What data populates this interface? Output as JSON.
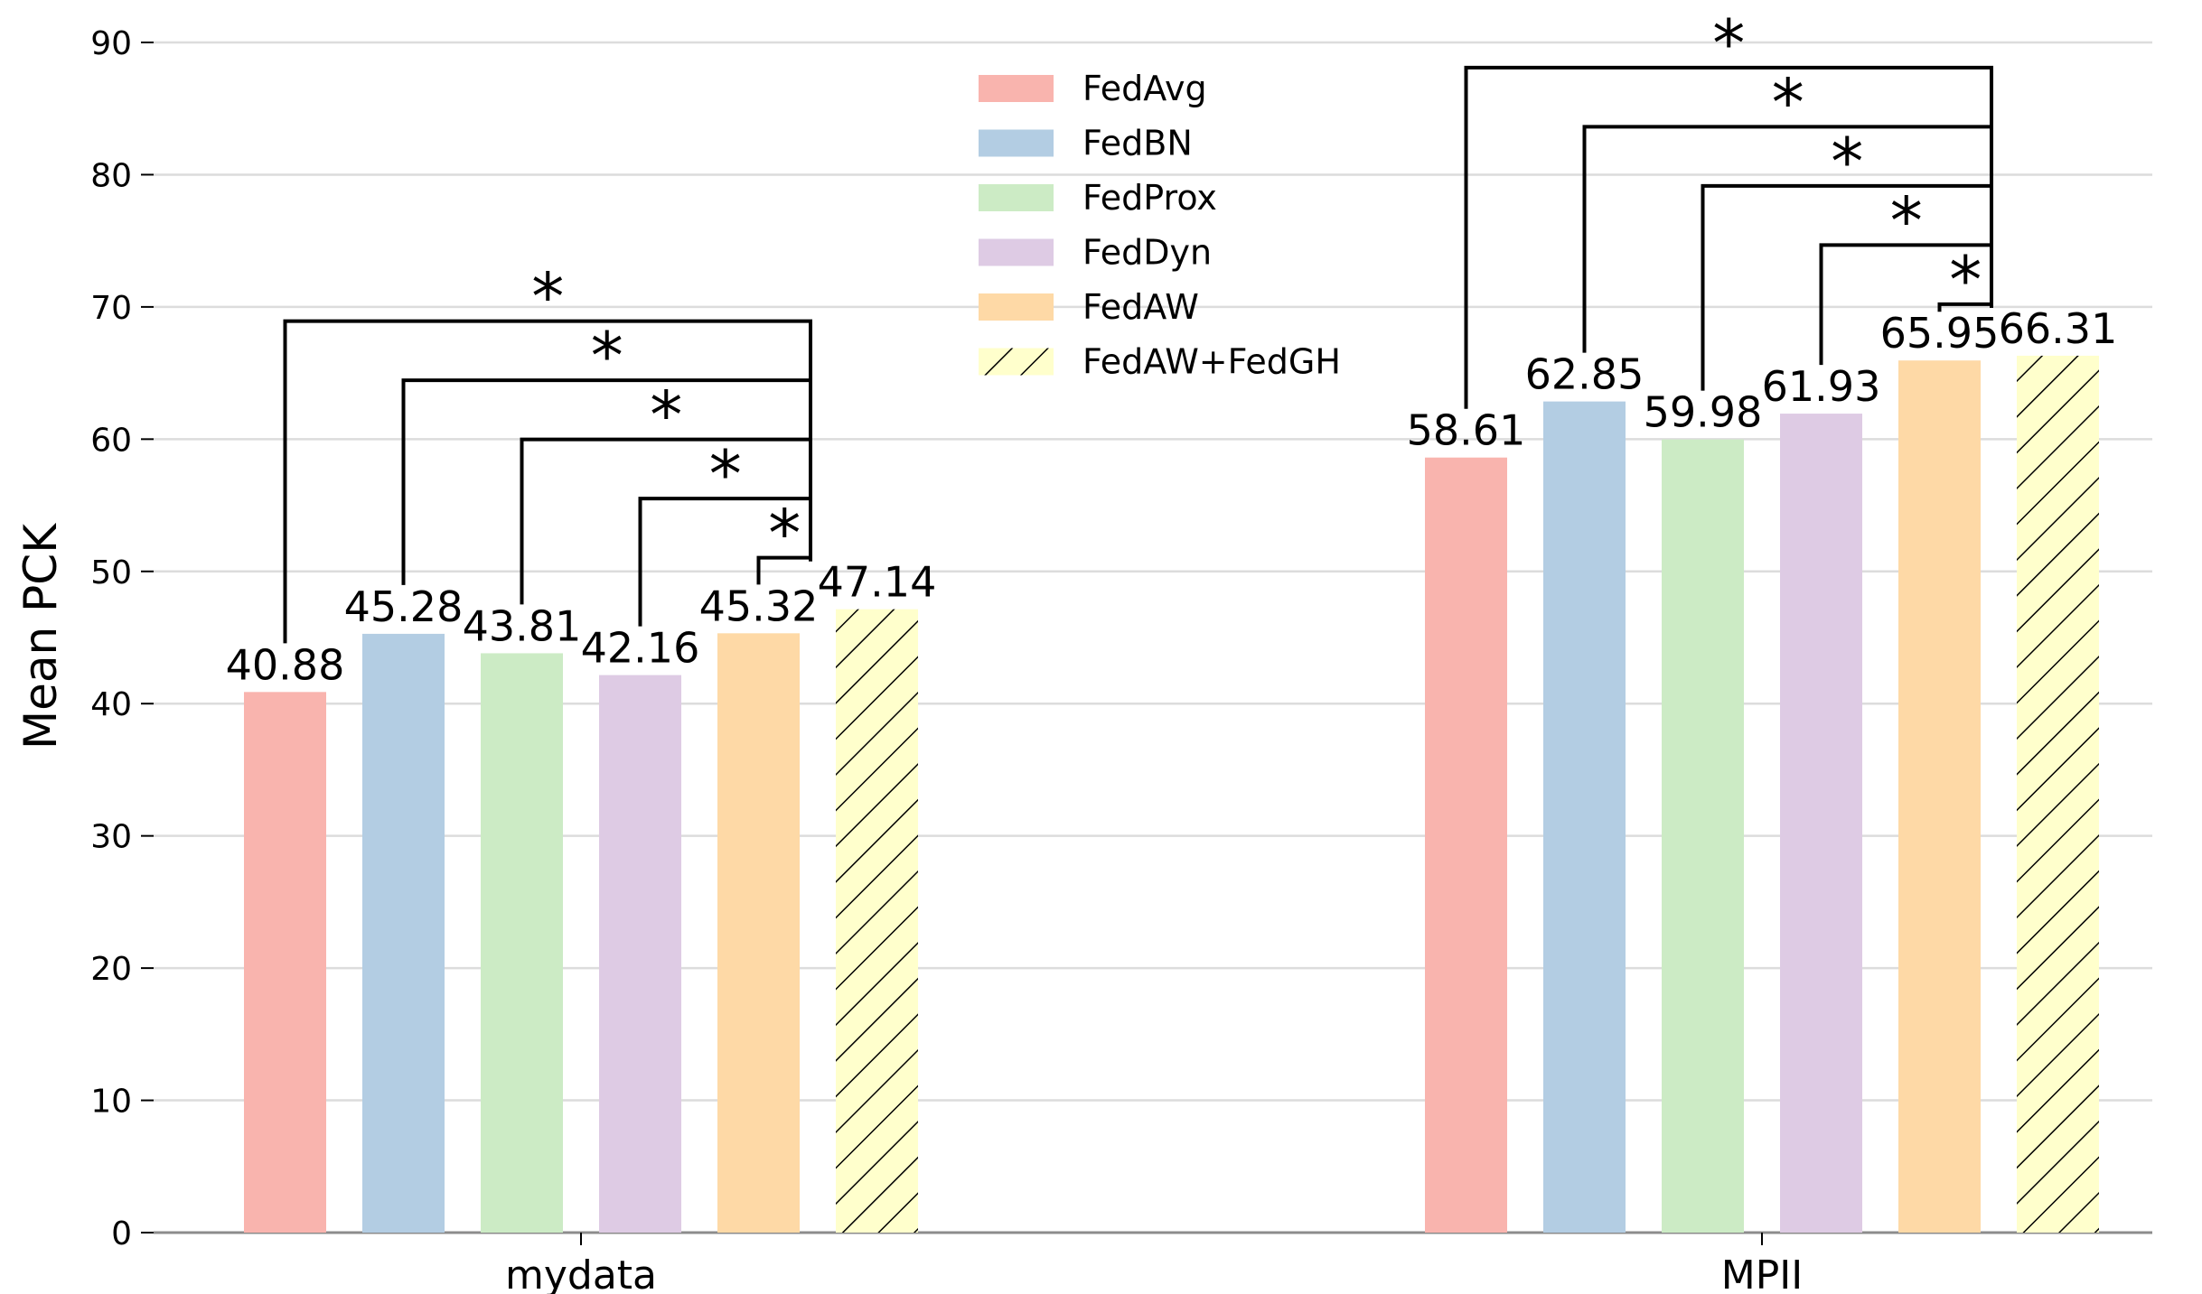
{
  "chart_data": {
    "type": "bar",
    "title": "",
    "xlabel": "",
    "ylabel": "Mean PCK",
    "ylim": [
      0,
      90
    ],
    "yticks": [
      0,
      10,
      20,
      30,
      40,
      50,
      60,
      70,
      80,
      90
    ],
    "grid": "y",
    "legend_position": "top-center",
    "categories": [
      "mydata",
      "MPII"
    ],
    "series": [
      {
        "name": "FedAvg",
        "color": "#f9b4ae",
        "hatch": false,
        "values": [
          40.88,
          58.61
        ],
        "labels": [
          "40.88",
          "58.61"
        ]
      },
      {
        "name": "FedBN",
        "color": "#b3cde3",
        "hatch": false,
        "values": [
          45.28,
          62.85
        ],
        "labels": [
          "45.28",
          "62.85"
        ]
      },
      {
        "name": "FedProx",
        "color": "#ccebc5",
        "hatch": false,
        "values": [
          43.81,
          59.98
        ],
        "labels": [
          "43.81",
          "59.98"
        ]
      },
      {
        "name": "FedDyn",
        "color": "#decbe4",
        "hatch": false,
        "values": [
          42.16,
          61.93
        ],
        "labels": [
          "42.16",
          "61.93"
        ]
      },
      {
        "name": "FedAW",
        "color": "#fed9a6",
        "hatch": false,
        "values": [
          45.32,
          65.95
        ],
        "labels": [
          "45.32",
          "65.95"
        ]
      },
      {
        "name": "FedAW+FedGH",
        "color": "#ffffcc",
        "hatch": true,
        "values": [
          47.14,
          66.31
        ],
        "labels": [
          "47.14",
          "66.31"
        ]
      }
    ],
    "significance": [
      {
        "category": 0,
        "from_series": "FedAvg",
        "to_series": "FedAW+FedGH",
        "symbol": "*"
      },
      {
        "category": 0,
        "from_series": "FedBN",
        "to_series": "FedAW+FedGH",
        "symbol": "*"
      },
      {
        "category": 0,
        "from_series": "FedProx",
        "to_series": "FedAW+FedGH",
        "symbol": "*"
      },
      {
        "category": 0,
        "from_series": "FedDyn",
        "to_series": "FedAW+FedGH",
        "symbol": "*"
      },
      {
        "category": 0,
        "from_series": "FedAW",
        "to_series": "FedAW+FedGH",
        "symbol": "*"
      },
      {
        "category": 1,
        "from_series": "FedAvg",
        "to_series": "FedAW+FedGH",
        "symbol": "*"
      },
      {
        "category": 1,
        "from_series": "FedBN",
        "to_series": "FedAW+FedGH",
        "symbol": "*"
      },
      {
        "category": 1,
        "from_series": "FedProx",
        "to_series": "FedAW+FedGH",
        "symbol": "*"
      },
      {
        "category": 1,
        "from_series": "FedDyn",
        "to_series": "FedAW+FedGH",
        "symbol": "*"
      },
      {
        "category": 1,
        "from_series": "FedAW",
        "to_series": "FedAW+FedGH",
        "symbol": "*"
      }
    ]
  }
}
